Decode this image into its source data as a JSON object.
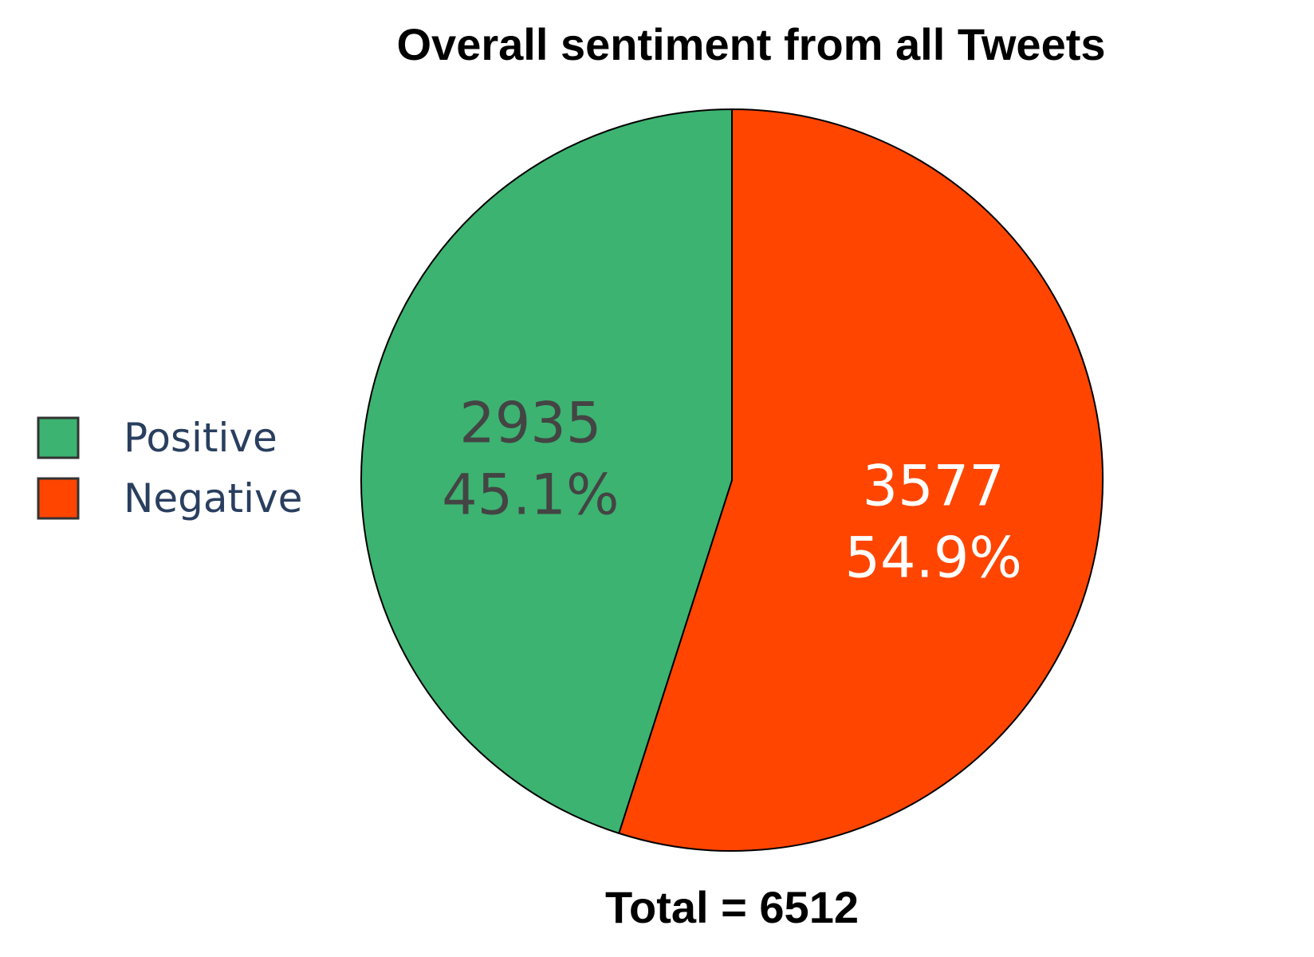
{
  "chart_data": {
    "type": "pie",
    "title": "Overall sentiment from all Tweets",
    "footer": "Total = 6512",
    "legend_position": "left",
    "slices": [
      {
        "label": "Positive",
        "value": 2935,
        "percent_label": "45.1%",
        "value_label": "2935",
        "color": "#3cb371",
        "text_color": "#444444"
      },
      {
        "label": "Negative",
        "value": 3577,
        "percent_label": "54.9%",
        "value_label": "3577",
        "color": "#ff4500",
        "text_color": "#ffffff"
      }
    ]
  }
}
